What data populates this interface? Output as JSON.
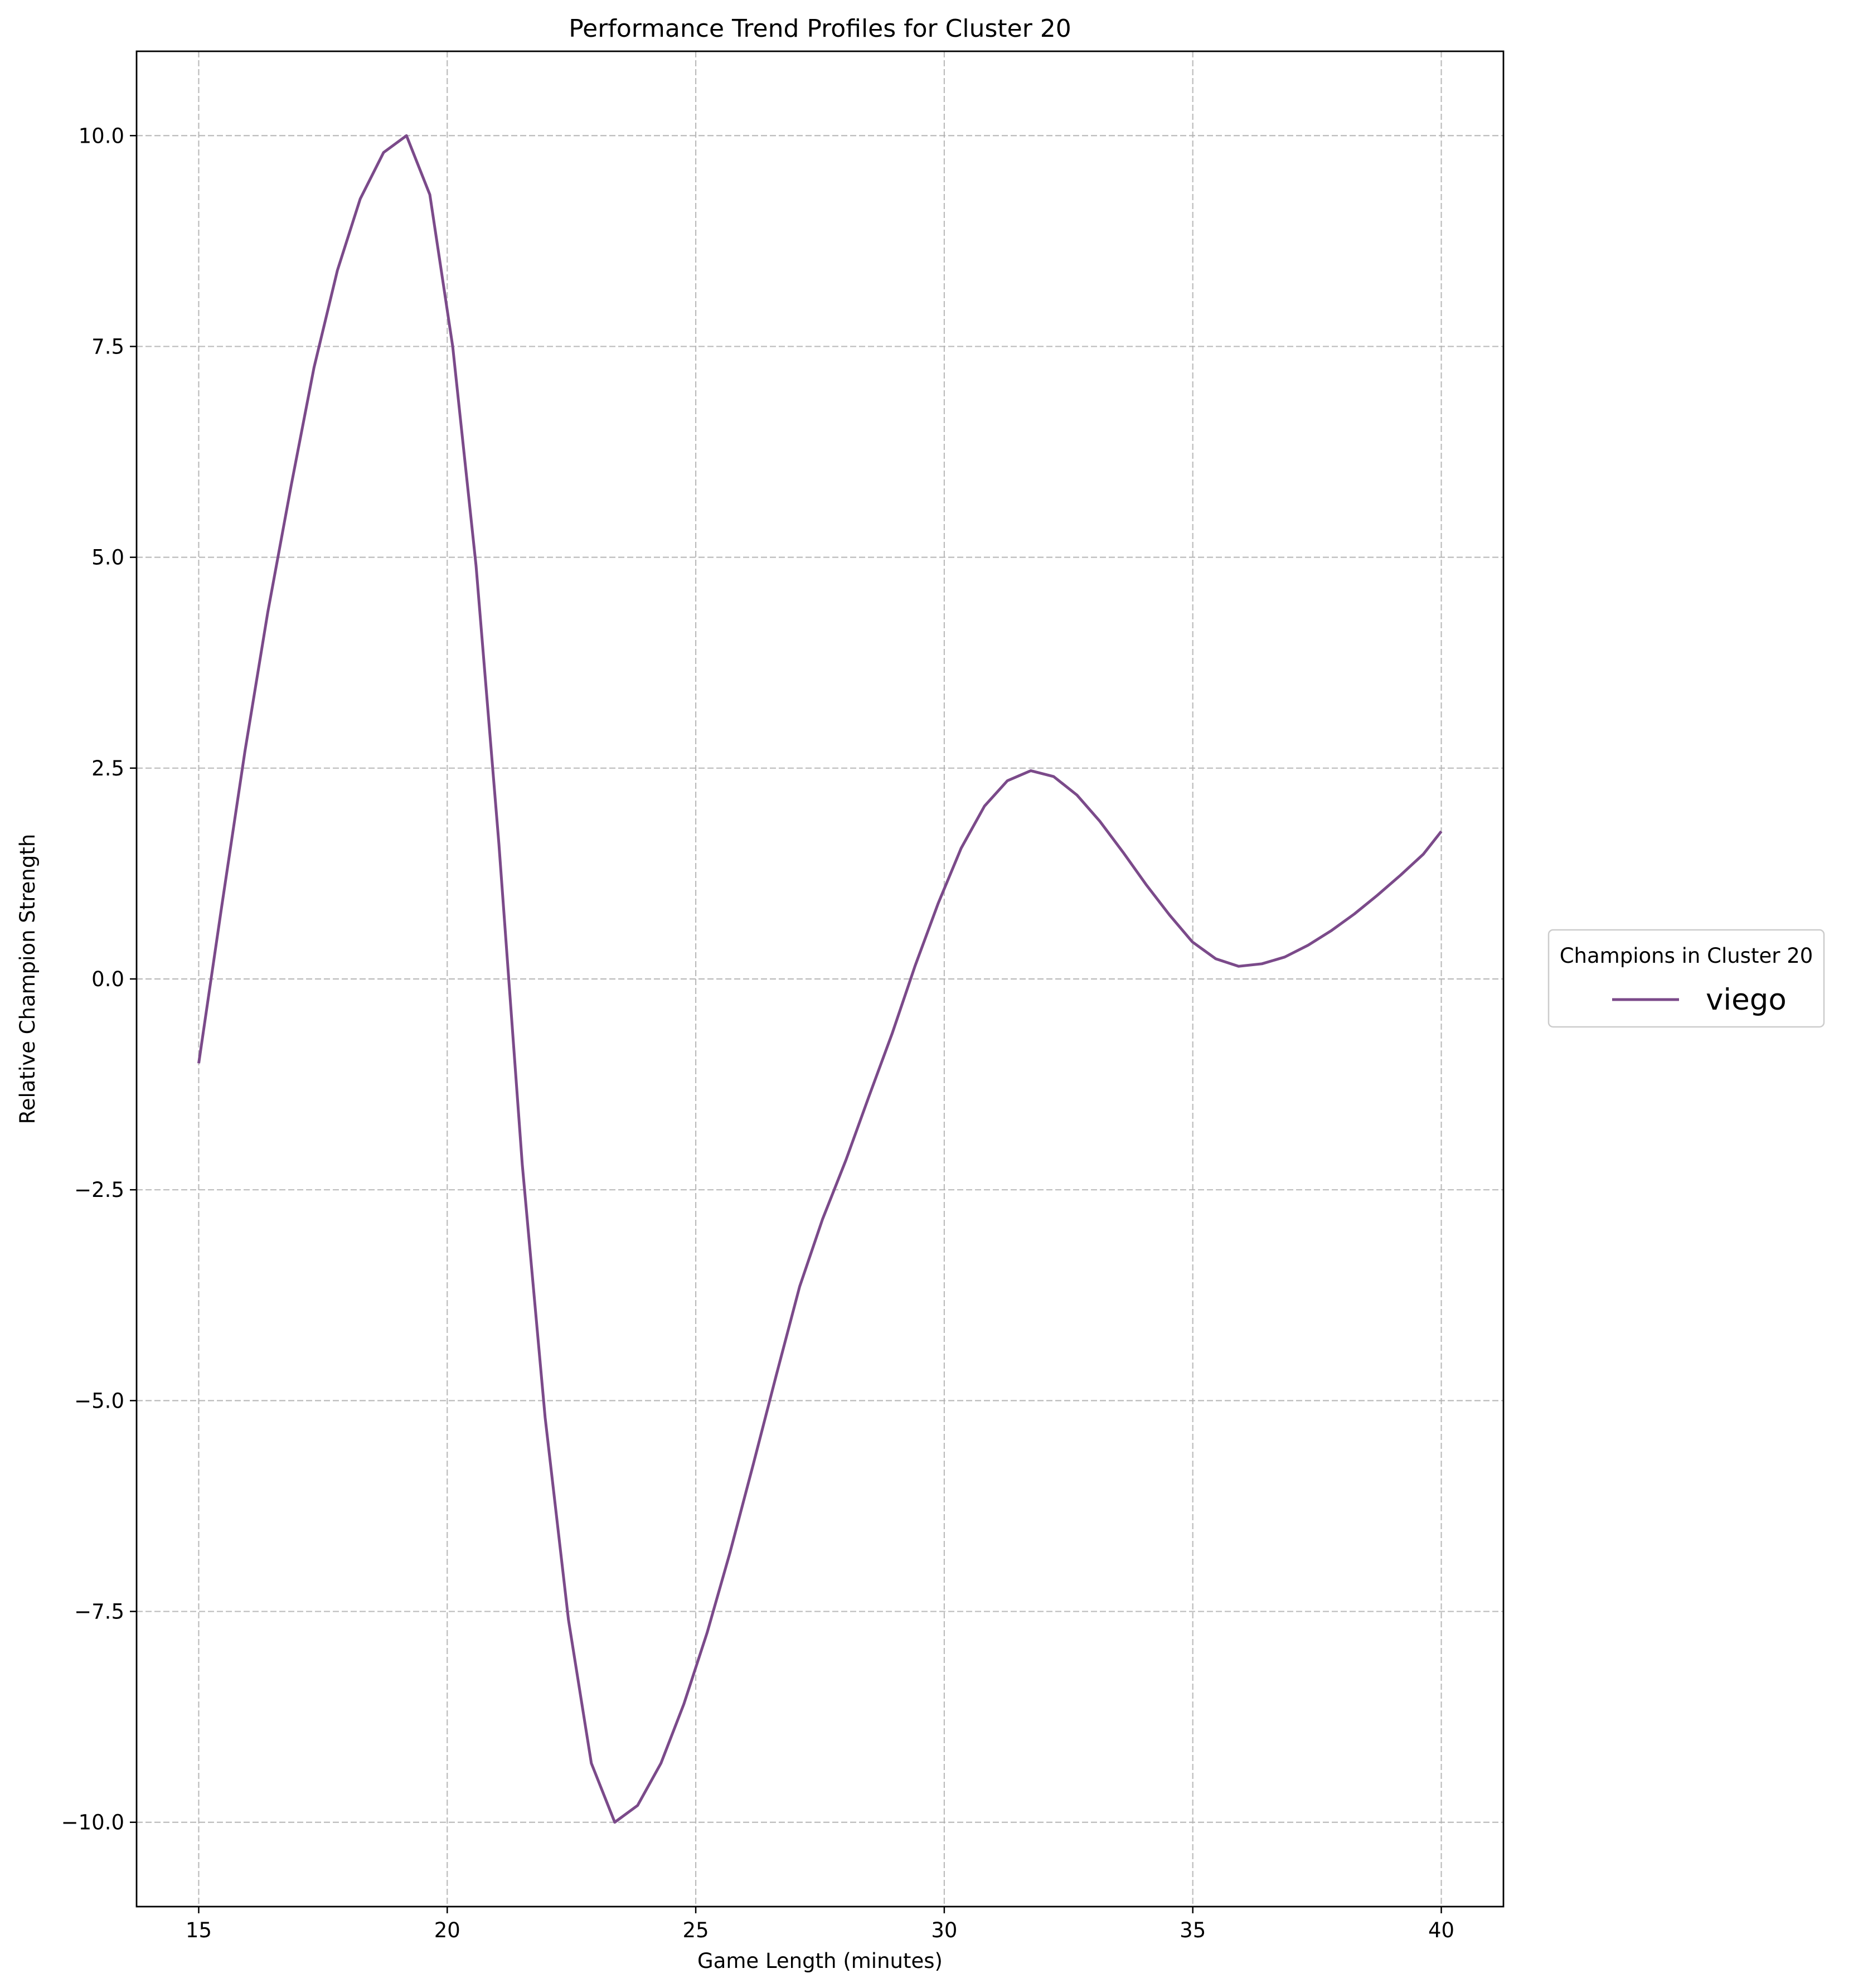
{
  "chart_data": {
    "type": "line",
    "title": "Performance Trend Profiles for Cluster 20",
    "xlabel": "Game Length (minutes)",
    "ylabel": "Relative Champion Strength",
    "xlim": [
      13.75,
      41.25
    ],
    "ylim": [
      -11.0,
      11.0
    ],
    "xticks": [
      15,
      20,
      25,
      30,
      35,
      40
    ],
    "yticks": [
      -10.0,
      -7.5,
      -5.0,
      -2.5,
      0.0,
      2.5,
      5.0,
      7.5,
      10.0
    ],
    "xtick_labels": [
      "15",
      "20",
      "25",
      "30",
      "35",
      "40"
    ],
    "ytick_labels": [
      "−10.0",
      "−7.5",
      "−5.0",
      "−2.5",
      "0.0",
      "2.5",
      "5.0",
      "7.5",
      "10.0"
    ],
    "grid": true,
    "legend": {
      "title": "Champions in Cluster 20",
      "placement": "center-right outside"
    },
    "series": [
      {
        "name": "viego",
        "color": "#7b4a8a",
        "x": [
          15.0,
          15.46,
          15.93,
          16.39,
          16.86,
          17.32,
          17.79,
          18.25,
          18.72,
          19.18,
          19.65,
          20.11,
          20.58,
          21.04,
          21.51,
          21.97,
          22.44,
          22.9,
          23.37,
          23.83,
          24.3,
          24.76,
          25.23,
          25.69,
          26.16,
          26.62,
          27.09,
          27.55,
          28.02,
          28.48,
          28.95,
          29.41,
          29.88,
          30.34,
          30.81,
          31.27,
          31.74,
          32.2,
          32.67,
          33.13,
          33.6,
          34.06,
          34.53,
          34.99,
          35.46,
          35.92,
          36.39,
          36.85,
          37.32,
          37.78,
          38.25,
          38.71,
          39.18,
          39.64,
          40.0
        ],
        "y": [
          -1.0,
          0.85,
          2.7,
          4.35,
          5.85,
          7.25,
          8.4,
          9.25,
          9.8,
          10.0,
          9.3,
          7.5,
          4.9,
          1.6,
          -2.2,
          -5.2,
          -7.6,
          -9.3,
          -10.0,
          -9.8,
          -9.3,
          -8.6,
          -7.75,
          -6.8,
          -5.75,
          -4.7,
          -3.65,
          -2.85,
          -2.15,
          -1.4,
          -0.65,
          0.15,
          0.9,
          1.55,
          2.05,
          2.35,
          2.47,
          2.4,
          2.18,
          1.87,
          1.5,
          1.12,
          0.76,
          0.44,
          0.24,
          0.15,
          0.18,
          0.26,
          0.4,
          0.57,
          0.77,
          0.99,
          1.23,
          1.48,
          1.75
        ]
      }
    ]
  }
}
